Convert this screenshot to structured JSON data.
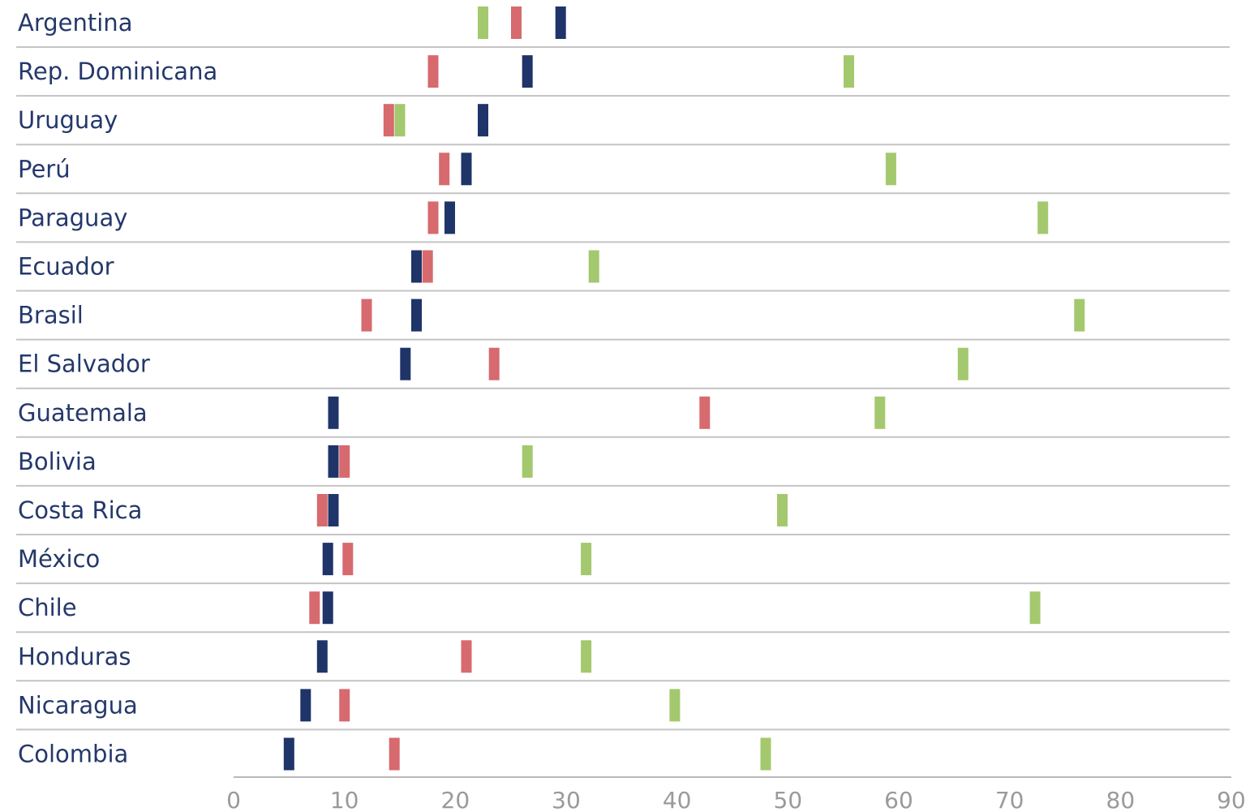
{
  "chart_data": {
    "type": "dot",
    "orientation": "horizontal",
    "categories": [
      "Argentina",
      "Rep. Dominicana",
      "Uruguay",
      "Perú",
      "Paraguay",
      "Ecuador",
      "Brasil",
      "El Salvador",
      "Guatemala",
      "Bolivia",
      "Costa Rica",
      "México",
      "Chile",
      "Honduras",
      "Nicaragua",
      "Colombia"
    ],
    "series": [
      {
        "color": "#1f3468",
        "values": [
          29.5,
          26.5,
          22.5,
          21,
          19.5,
          16.5,
          16.5,
          15.5,
          9,
          9,
          9,
          8.5,
          8.5,
          8,
          6.5,
          5
        ]
      },
      {
        "color": "#d66a6e",
        "values": [
          25.5,
          18,
          14,
          19,
          18,
          17.5,
          12,
          23.5,
          42.5,
          10,
          8,
          10.3,
          7.3,
          21,
          10,
          14.5
        ]
      },
      {
        "color": "#a4c86e",
        "values": [
          22.5,
          55.5,
          15,
          59.3,
          73,
          32.5,
          76.3,
          65.8,
          58.3,
          26.5,
          49.5,
          31.8,
          72.3,
          31.8,
          39.8,
          48
        ]
      }
    ],
    "xlim": [
      0,
      90
    ],
    "xticks": [
      "0",
      "10",
      "20",
      "30",
      "40",
      "50",
      "60",
      "70",
      "80",
      "90"
    ],
    "title": "",
    "xlabel": "",
    "ylabel": "",
    "grid": false,
    "legend": "none"
  }
}
